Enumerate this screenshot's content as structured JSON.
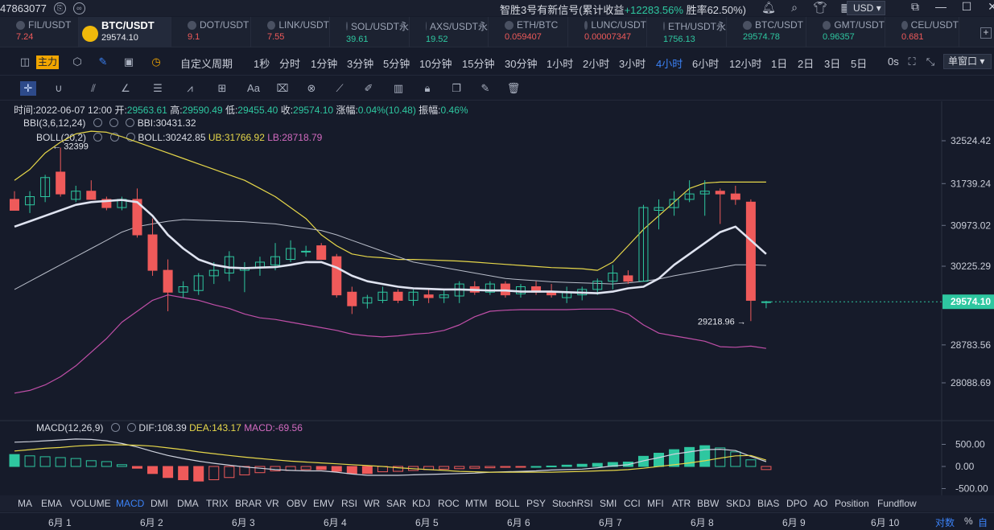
{
  "topbar": {
    "account": "47863077",
    "signal_prefix": "智胜3号有新信号(累计收益",
    "signal_gain": "+12283.56%",
    "signal_suffix": "胜率62.50%)",
    "currency": "USD"
  },
  "tickers": [
    {
      "symbol": "FIL/USDT",
      "price": "7.24",
      "dir": "down"
    },
    {
      "symbol": "BTC/USDT",
      "price": "29574.10",
      "dir": "active"
    },
    {
      "symbol": "DOT/USDT",
      "price": "9.1",
      "dir": "down"
    },
    {
      "symbol": "LINK/USDT",
      "price": "7.55",
      "dir": "down"
    },
    {
      "symbol": "SOL/USDT永",
      "price": "39.61",
      "dir": "up"
    },
    {
      "symbol": "AXS/USDT永",
      "price": "19.52",
      "dir": "up"
    },
    {
      "symbol": "ETH/BTC",
      "price": "0.059407",
      "dir": "down"
    },
    {
      "symbol": "LUNC/USDT",
      "price": "0.00007347",
      "dir": "down"
    },
    {
      "symbol": "ETH/USDT永",
      "price": "1756.13",
      "dir": "up"
    },
    {
      "symbol": "BTC/USDT",
      "price": "29574.78",
      "dir": "up"
    },
    {
      "symbol": "GMT/USDT",
      "price": "0.96357",
      "dir": "up"
    },
    {
      "symbol": "CEL/USDT",
      "price": "0.681",
      "dir": "down"
    }
  ],
  "toolbar": {
    "main_label": "主力",
    "custom_period": "自定义周期",
    "periods": [
      "1秒",
      "分时",
      "1分钟",
      "3分钟",
      "5分钟",
      "10分钟",
      "15分钟",
      "30分钟",
      "1小时",
      "2小时",
      "3小时",
      "4小时",
      "6小时",
      "12小时",
      "1日",
      "2日",
      "3日",
      "5日"
    ],
    "active_period": "4小时",
    "zero_s": "0s",
    "window_mode": "单窗口"
  },
  "info": {
    "time_label": "时间:",
    "time": "2022-06-07 12:00",
    "open_label": "开:",
    "open": "29563.61",
    "high_label": "高:",
    "high": "29590.49",
    "low_label": "低:",
    "low": "29455.40",
    "close_label": "收:",
    "close": "29574.10",
    "change_label": "涨幅:",
    "change": "0.04%(10.48)",
    "amp_label": "振幅:",
    "amp": "0.46%"
  },
  "indicators": {
    "bbi_name": "BBI(3,6,12,24)",
    "bbi_val": "BBI:30431.32",
    "boll_name": "BOLL(20,2)",
    "boll_val": "BOLL:30242.85",
    "ub_val": "UB:31766.92",
    "lb_val": "LB:28718.79",
    "macd_name": "MACD(12,26,9)",
    "dif_val": "DIF:108.39",
    "dea_val": "DEA:143.17",
    "macd_val": "MACD:-69.56"
  },
  "annotations": {
    "high_mark": "32399",
    "low_mark": "29218.96"
  },
  "price_axis": [
    "32524.42",
    "31739.24",
    "30973.02",
    "30225.29",
    "29574.10",
    "28783.56",
    "28088.69"
  ],
  "macd_axis": [
    "500.00",
    "0.00",
    "-500.00"
  ],
  "indicator_tabs": [
    "MA",
    "EMA",
    "VOLUME",
    "MACD",
    "DMI",
    "DMA",
    "TRIX",
    "BRAR",
    "VR",
    "OBV",
    "EMV",
    "RSI",
    "WR",
    "SAR",
    "KDJ",
    "ROC",
    "MTM",
    "BOLL",
    "PSY",
    "StochRSI",
    "SMI",
    "CCI",
    "MFI",
    "ATR",
    "BBW",
    "SKDJ",
    "BIAS",
    "DPO",
    "AO",
    "Position",
    "Fundflow"
  ],
  "active_indicator": "MACD",
  "dates": [
    "6月 1",
    "6月 2",
    "6月 3",
    "6月 4",
    "6月 5",
    "6月 6",
    "6月 7",
    "6月 8",
    "6月 9",
    "6月 10"
  ],
  "axis_mode": {
    "log": "对数",
    "pct": "%",
    "auto": "自动"
  },
  "colors": {
    "up": "#2ec7a0",
    "down": "#ef5a5a",
    "accent": "#3b82f6",
    "bbi": "#dfe3f0",
    "boll_mid": "#b8bdc9",
    "boll_ub": "#e6d74a",
    "boll_lb": "#c04fa8",
    "background": "#161b2a"
  },
  "chart_data": {
    "type": "candlestick",
    "interval": "4h",
    "ylim": [
      27800,
      32750
    ],
    "candles": [
      {
        "o": 31450,
        "h": 31600,
        "l": 31250,
        "c": 31250
      },
      {
        "o": 31350,
        "h": 31600,
        "l": 31200,
        "c": 31500
      },
      {
        "o": 31500,
        "h": 31900,
        "l": 31400,
        "c": 31850
      },
      {
        "o": 31950,
        "h": 32399,
        "l": 31500,
        "c": 31550
      },
      {
        "o": 31450,
        "h": 31700,
        "l": 31400,
        "c": 31600
      },
      {
        "o": 31600,
        "h": 31800,
        "l": 31450,
        "c": 31450
      },
      {
        "o": 31450,
        "h": 31500,
        "l": 31250,
        "c": 31300
      },
      {
        "o": 31300,
        "h": 31500,
        "l": 31250,
        "c": 31450
      },
      {
        "o": 31450,
        "h": 31650,
        "l": 30750,
        "c": 30800
      },
      {
        "o": 30800,
        "h": 31100,
        "l": 30050,
        "c": 30150
      },
      {
        "o": 30150,
        "h": 30350,
        "l": 29400,
        "c": 29750
      },
      {
        "o": 29750,
        "h": 29950,
        "l": 29650,
        "c": 29850
      },
      {
        "o": 29780,
        "h": 30100,
        "l": 29700,
        "c": 30050
      },
      {
        "o": 30050,
        "h": 30300,
        "l": 29900,
        "c": 30150
      },
      {
        "o": 30100,
        "h": 30500,
        "l": 29950,
        "c": 30400
      },
      {
        "o": 30150,
        "h": 30300,
        "l": 29750,
        "c": 30200
      },
      {
        "o": 30200,
        "h": 30400,
        "l": 30050,
        "c": 30300
      },
      {
        "o": 30250,
        "h": 30650,
        "l": 30150,
        "c": 30400
      },
      {
        "o": 30350,
        "h": 30700,
        "l": 30300,
        "c": 30550
      },
      {
        "o": 30500,
        "h": 30600,
        "l": 30400,
        "c": 30500
      },
      {
        "o": 30600,
        "h": 30650,
        "l": 30350,
        "c": 30350
      },
      {
        "o": 30400,
        "h": 30450,
        "l": 29650,
        "c": 29700
      },
      {
        "o": 29750,
        "h": 29850,
        "l": 29350,
        "c": 29500
      },
      {
        "o": 29550,
        "h": 29700,
        "l": 29450,
        "c": 29650
      },
      {
        "o": 29600,
        "h": 29850,
        "l": 29550,
        "c": 29750
      },
      {
        "o": 29750,
        "h": 29800,
        "l": 29550,
        "c": 29600
      },
      {
        "o": 29600,
        "h": 29800,
        "l": 29500,
        "c": 29750
      },
      {
        "o": 29700,
        "h": 29800,
        "l": 29550,
        "c": 29650
      },
      {
        "o": 29650,
        "h": 29800,
        "l": 29550,
        "c": 29700
      },
      {
        "o": 29680,
        "h": 29950,
        "l": 29550,
        "c": 29900
      },
      {
        "o": 29850,
        "h": 29950,
        "l": 29700,
        "c": 29750
      },
      {
        "o": 29750,
        "h": 29950,
        "l": 29700,
        "c": 29900
      },
      {
        "o": 29900,
        "h": 29950,
        "l": 29650,
        "c": 29700
      },
      {
        "o": 29720,
        "h": 29900,
        "l": 29650,
        "c": 29850
      },
      {
        "o": 29850,
        "h": 29950,
        "l": 29700,
        "c": 29750
      },
      {
        "o": 29750,
        "h": 29900,
        "l": 29650,
        "c": 29700
      },
      {
        "o": 29650,
        "h": 29850,
        "l": 29550,
        "c": 29750
      },
      {
        "o": 29700,
        "h": 29850,
        "l": 29600,
        "c": 29800
      },
      {
        "o": 29800,
        "h": 30000,
        "l": 29700,
        "c": 29950
      },
      {
        "o": 29950,
        "h": 30250,
        "l": 29800,
        "c": 30100
      },
      {
        "o": 30050,
        "h": 30150,
        "l": 29900,
        "c": 29950
      },
      {
        "o": 29950,
        "h": 31350,
        "l": 29950,
        "c": 31300
      },
      {
        "o": 31250,
        "h": 31450,
        "l": 30900,
        "c": 31300
      },
      {
        "o": 31300,
        "h": 31600,
        "l": 31150,
        "c": 31450
      },
      {
        "o": 31450,
        "h": 31800,
        "l": 31400,
        "c": 31550
      },
      {
        "o": 31550,
        "h": 31800,
        "l": 31150,
        "c": 31600
      },
      {
        "o": 31600,
        "h": 31650,
        "l": 31000,
        "c": 31550
      },
      {
        "o": 31550,
        "h": 31700,
        "l": 31350,
        "c": 31450
      },
      {
        "o": 31400,
        "h": 31450,
        "l": 29218.96,
        "c": 29600
      },
      {
        "o": 29563.61,
        "h": 29590.49,
        "l": 29455.4,
        "c": 29574.1
      }
    ],
    "bbi": [
      30950,
      31050,
      31150,
      31250,
      31350,
      31400,
      31420,
      31440,
      31400,
      31150,
      30800,
      30550,
      30350,
      30250,
      30200,
      30190,
      30200,
      30210,
      30250,
      30300,
      30300,
      30200,
      30050,
      29950,
      29900,
      29850,
      29820,
      29810,
      29800,
      29800,
      29790,
      29780,
      29780,
      29760,
      29760,
      29760,
      29750,
      29740,
      29730,
      29760,
      29820,
      29850,
      30000,
      30250,
      30450,
      30650,
      30850,
      30950,
      30700,
      30450
    ],
    "boll_mid": [
      29800,
      29950,
      30100,
      30250,
      30400,
      30550,
      30700,
      30850,
      30950,
      31000,
      31050,
      31080,
      31070,
      31060,
      31050,
      31040,
      31020,
      31000,
      30960,
      30920,
      30880,
      30800,
      30700,
      30600,
      30500,
      30400,
      30300,
      30250,
      30200,
      30150,
      30100,
      30050,
      30000,
      29980,
      29960,
      29940,
      29930,
      29920,
      29910,
      29900,
      29920,
      29950,
      29990,
      30050,
      30100,
      30150,
      30200,
      30250,
      30250,
      30240
    ],
    "boll_ub": [
      31800,
      32000,
      32300,
      32500,
      32650,
      32700,
      32680,
      32600,
      32500,
      32400,
      32300,
      32200,
      32100,
      32000,
      31900,
      31800,
      31650,
      31500,
      31300,
      31100,
      30800,
      30600,
      30450,
      30400,
      30380,
      30350,
      30350,
      30340,
      30330,
      30320,
      30300,
      30280,
      30260,
      30240,
      30220,
      30200,
      30190,
      30180,
      30150,
      30300,
      30600,
      30900,
      31150,
      31400,
      31650,
      31750,
      31767,
      31767,
      31767,
      31767
    ],
    "boll_lb": [
      27900,
      27950,
      28050,
      28200,
      28400,
      28650,
      28900,
      29200,
      29400,
      29600,
      29700,
      29650,
      29600,
      29520,
      29450,
      29350,
      29280,
      29250,
      29200,
      29150,
      29100,
      29050,
      28980,
      28950,
      28930,
      28950,
      28980,
      29000,
      29050,
      29150,
      29300,
      29400,
      29420,
      29430,
      29430,
      29430,
      29430,
      29440,
      29440,
      29440,
      29350,
      29150,
      29000,
      28950,
      28900,
      28850,
      28750,
      28740,
      28760,
      28720
    ],
    "macd_hist": [
      270,
      240,
      220,
      200,
      180,
      130,
      110,
      40,
      -40,
      -160,
      -250,
      -300,
      -330,
      -300,
      -250,
      -190,
      -140,
      -100,
      -90,
      -70,
      -70,
      -110,
      -160,
      -160,
      -120,
      -110,
      -90,
      -70,
      -60,
      -50,
      -40,
      -30,
      -20,
      -10,
      0,
      10,
      30,
      50,
      70,
      90,
      100,
      230,
      300,
      380,
      430,
      470,
      420,
      330,
      150,
      -70
    ],
    "dif": [
      550,
      560,
      580,
      600,
      620,
      610,
      580,
      520,
      440,
      340,
      250,
      180,
      120,
      70,
      30,
      -10,
      -40,
      -70,
      -90,
      -100,
      -100,
      -130,
      -170,
      -200,
      -200,
      -200,
      -190,
      -180,
      -170,
      -160,
      -150,
      -130,
      -120,
      -110,
      -100,
      -80,
      -70,
      -60,
      -30,
      10,
      40,
      130,
      200,
      280,
      330,
      380,
      390,
      360,
      230,
      108.39
    ],
    "dea": [
      350,
      380,
      410,
      430,
      460,
      480,
      490,
      490,
      480,
      460,
      420,
      380,
      330,
      290,
      250,
      210,
      180,
      150,
      120,
      100,
      80,
      60,
      40,
      20,
      0,
      -30,
      -50,
      -70,
      -90,
      -110,
      -120,
      -130,
      -130,
      -130,
      -130,
      -130,
      -120,
      -110,
      -100,
      -90,
      -70,
      -40,
      0,
      40,
      80,
      130,
      190,
      240,
      250,
      143.17
    ],
    "macd_ylim": [
      -700,
      700
    ]
  }
}
